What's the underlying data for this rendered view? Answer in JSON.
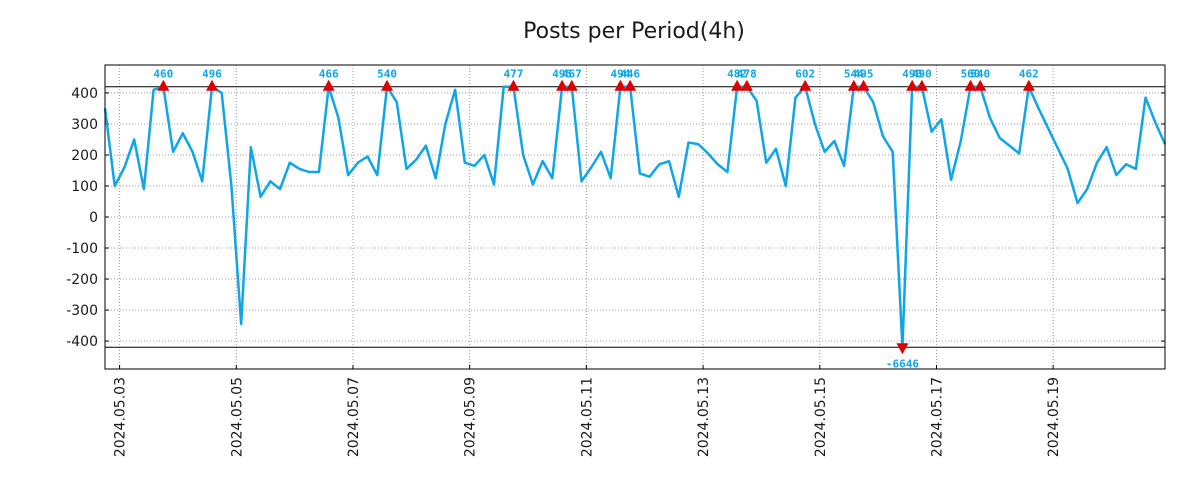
{
  "chart_data": {
    "type": "line",
    "title": "Posts per Period(4h)",
    "xlabel": "",
    "ylabel": "",
    "ylim": [
      -490,
      490
    ],
    "xlim": [
      0,
      109
    ],
    "grid": true,
    "line_color": "#0ea5e9",
    "clip_band": [
      -420,
      420
    ],
    "y_ticks": [
      400,
      300,
      200,
      100,
      0,
      -100,
      -200,
      -300,
      -400
    ],
    "x_ticks": [
      {
        "pos": 1.5,
        "label": "2024.05.03"
      },
      {
        "pos": 13.5,
        "label": "2024.05.05"
      },
      {
        "pos": 25.5,
        "label": "2024.05.07"
      },
      {
        "pos": 37.5,
        "label": "2024.05.09"
      },
      {
        "pos": 49.5,
        "label": "2024.05.11"
      },
      {
        "pos": 61.5,
        "label": "2024.05.13"
      },
      {
        "pos": 73.5,
        "label": "2024.05.15"
      },
      {
        "pos": 85.5,
        "label": "2024.05.17"
      },
      {
        "pos": 97.5,
        "label": "2024.05.19"
      }
    ],
    "series": [
      {
        "name": "posts",
        "values": [
          350,
          100,
          160,
          250,
          90,
          410,
          420,
          210,
          270,
          210,
          115,
          420,
          400,
          100,
          -345,
          225,
          65,
          115,
          90,
          175,
          155,
          145,
          145,
          420,
          320,
          135,
          175,
          195,
          135,
          420,
          370,
          155,
          185,
          230,
          125,
          300,
          410,
          175,
          165,
          200,
          105,
          420,
          420,
          200,
          105,
          180,
          125,
          420,
          420,
          115,
          160,
          210,
          125,
          420,
          420,
          140,
          130,
          170,
          180,
          65,
          240,
          235,
          205,
          170,
          145,
          420,
          420,
          375,
          175,
          220,
          100,
          385,
          420,
          300,
          210,
          245,
          165,
          420,
          420,
          370,
          260,
          210,
          -420,
          420,
          420,
          275,
          315,
          120,
          245,
          420,
          420,
          320,
          255,
          230,
          205,
          420,
          350,
          285,
          220,
          155,
          45,
          90,
          175,
          225,
          135,
          170,
          155,
          385,
          305,
          235
        ]
      }
    ],
    "annotations": [
      {
        "x": 6,
        "label": "460",
        "dir": "up"
      },
      {
        "x": 11,
        "label": "496",
        "dir": "up"
      },
      {
        "x": 23,
        "label": "466",
        "dir": "up"
      },
      {
        "x": 29,
        "label": "540",
        "dir": "up"
      },
      {
        "x": 42,
        "label": "477",
        "dir": "up"
      },
      {
        "x": 47,
        "label": "495",
        "dir": "up"
      },
      {
        "x": 48,
        "label": "467",
        "dir": "up"
      },
      {
        "x": 53,
        "label": "494",
        "dir": "up"
      },
      {
        "x": 54,
        "label": "446",
        "dir": "up"
      },
      {
        "x": 65,
        "label": "482",
        "dir": "up"
      },
      {
        "x": 66,
        "label": "478",
        "dir": "up"
      },
      {
        "x": 72,
        "label": "602",
        "dir": "up"
      },
      {
        "x": 77,
        "label": "544",
        "dir": "up"
      },
      {
        "x": 78,
        "label": "495",
        "dir": "up"
      },
      {
        "x": 82,
        "label": "-6646",
        "dir": "down"
      },
      {
        "x": 83,
        "label": "490",
        "dir": "up"
      },
      {
        "x": 84,
        "label": "490",
        "dir": "up"
      },
      {
        "x": 89,
        "label": "560",
        "dir": "up"
      },
      {
        "x": 90,
        "label": "540",
        "dir": "up"
      },
      {
        "x": 95,
        "label": "462",
        "dir": "up"
      }
    ],
    "annotation_label_color": "#0ea5e9",
    "marker_color": "#dd0000"
  }
}
